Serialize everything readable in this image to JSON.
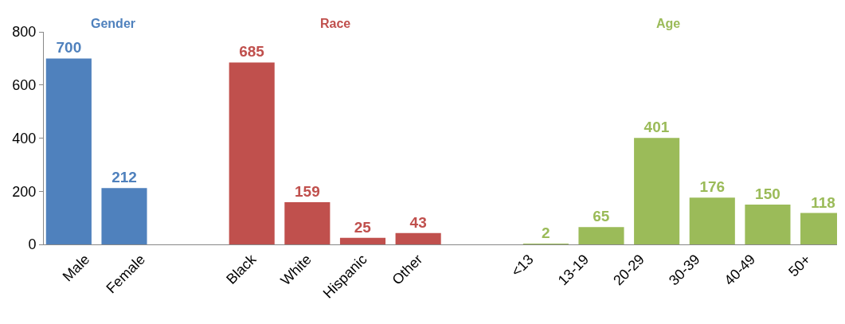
{
  "chart_data": {
    "type": "bar",
    "categories": [
      "Male",
      "Female",
      null,
      "Black",
      "White",
      "Hispanic",
      "Other",
      null,
      "<13",
      "13-19",
      "20-29",
      "30-39",
      "40-49",
      "50+"
    ],
    "series": [
      {
        "name": "Gender",
        "color": "#4f81bd",
        "values": [
          700,
          212,
          null,
          null,
          null,
          null,
          null,
          null,
          null,
          null,
          null,
          null,
          null,
          null
        ]
      },
      {
        "name": "Race",
        "color": "#c0504d",
        "values": [
          null,
          null,
          null,
          685,
          159,
          25,
          43,
          null,
          null,
          null,
          null,
          null,
          null,
          null
        ]
      },
      {
        "name": "Age",
        "color": "#9bbb59",
        "values": [
          null,
          null,
          null,
          null,
          null,
          null,
          null,
          null,
          2,
          65,
          401,
          176,
          150,
          118
        ]
      }
    ],
    "ylim": [
      0,
      800
    ],
    "yticks": [
      0,
      200,
      400,
      600,
      800
    ],
    "data_labels": true
  }
}
